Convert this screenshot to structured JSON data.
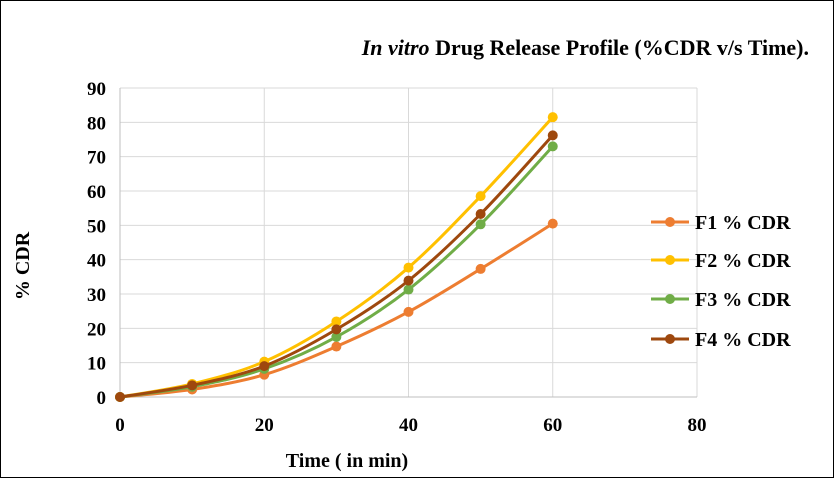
{
  "chart_data": {
    "type": "line",
    "title_italic": "In vitro",
    "title_rest": " Drug Release Profile (%CDR v/s Time).",
    "xlabel": "Time ( in min)",
    "ylabel": "% CDR",
    "xlim": [
      0,
      80
    ],
    "ylim": [
      0,
      90
    ],
    "x_ticks": [
      0,
      20,
      40,
      60,
      80
    ],
    "y_ticks": [
      0,
      10,
      20,
      30,
      40,
      50,
      60,
      70,
      80,
      90
    ],
    "x_tick_labels": [
      "0",
      "20",
      "40",
      "60",
      "80"
    ],
    "y_tick_labels": [
      "0",
      "10",
      "20",
      "30",
      "40",
      "50",
      "60",
      "70",
      "80",
      "90"
    ],
    "grid": "vertical and horizontal",
    "legend_position": "right",
    "x": [
      0,
      10,
      20,
      30,
      40,
      50,
      60
    ],
    "series": [
      {
        "name": "F1 % CDR",
        "color": "#ED7D31",
        "values": [
          0,
          2.2,
          6.5,
          14.7,
          24.8,
          37.3,
          50.5
        ]
      },
      {
        "name": "F2 % CDR",
        "color": "#FFC000",
        "values": [
          0,
          3.8,
          10.3,
          22.0,
          37.7,
          58.5,
          81.5
        ]
      },
      {
        "name": "F3 % CDR",
        "color": "#70AD47",
        "values": [
          0,
          3.0,
          8.2,
          17.5,
          31.3,
          50.3,
          73.0
        ]
      },
      {
        "name": "F4 % CDR",
        "color": "#9E480E",
        "values": [
          0,
          3.4,
          9.0,
          19.7,
          33.9,
          53.3,
          76.2
        ]
      }
    ]
  }
}
